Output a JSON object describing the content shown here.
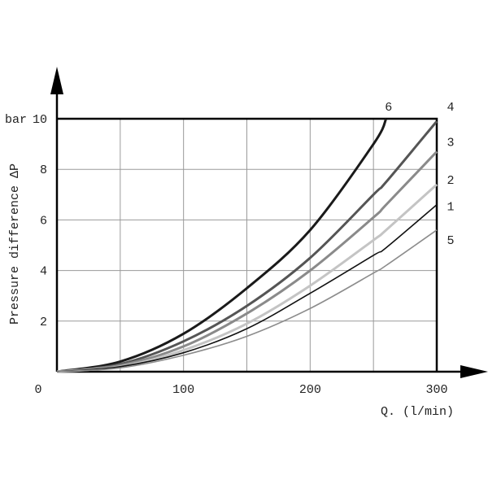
{
  "chart_data": {
    "type": "line",
    "y_label": "Pressure difference ΔP",
    "y_unit": "bar",
    "x_label": "Q. (l/min)",
    "x": [
      0,
      50,
      100,
      150,
      200,
      250,
      260,
      300
    ],
    "series": [
      {
        "name": "6",
        "color": "#1a1a1a",
        "values": [
          0,
          0.4,
          1.5,
          3.3,
          5.6,
          9.0,
          10,
          null
        ]
      },
      {
        "name": "4",
        "color": "#555555",
        "values": [
          0,
          0.3,
          1.2,
          2.6,
          4.5,
          7.0,
          7.5,
          9.9
        ]
      },
      {
        "name": "3",
        "color": "#8a8a8a",
        "values": [
          0,
          0.25,
          1.0,
          2.3,
          4.0,
          6.1,
          6.6,
          8.7
        ]
      },
      {
        "name": "2",
        "color": "#c4c4c4",
        "values": [
          0,
          0.2,
          0.85,
          1.9,
          3.4,
          5.2,
          5.6,
          7.4
        ]
      },
      {
        "name": "1",
        "color": "#111111",
        "values": [
          0,
          0.2,
          0.75,
          1.7,
          3.1,
          4.6,
          4.9,
          6.6
        ]
      },
      {
        "name": "5",
        "color": "#8c8c8c",
        "values": [
          0,
          0.15,
          0.65,
          1.4,
          2.5,
          3.9,
          4.2,
          5.6
        ]
      }
    ],
    "xlim": [
      0,
      300
    ],
    "ylim": [
      0,
      10
    ],
    "xticks": [
      0,
      100,
      200,
      300
    ],
    "yticks": [
      2,
      4,
      6,
      8,
      10
    ],
    "x_grid": [
      50,
      100,
      150,
      200,
      250
    ],
    "grid": true
  }
}
